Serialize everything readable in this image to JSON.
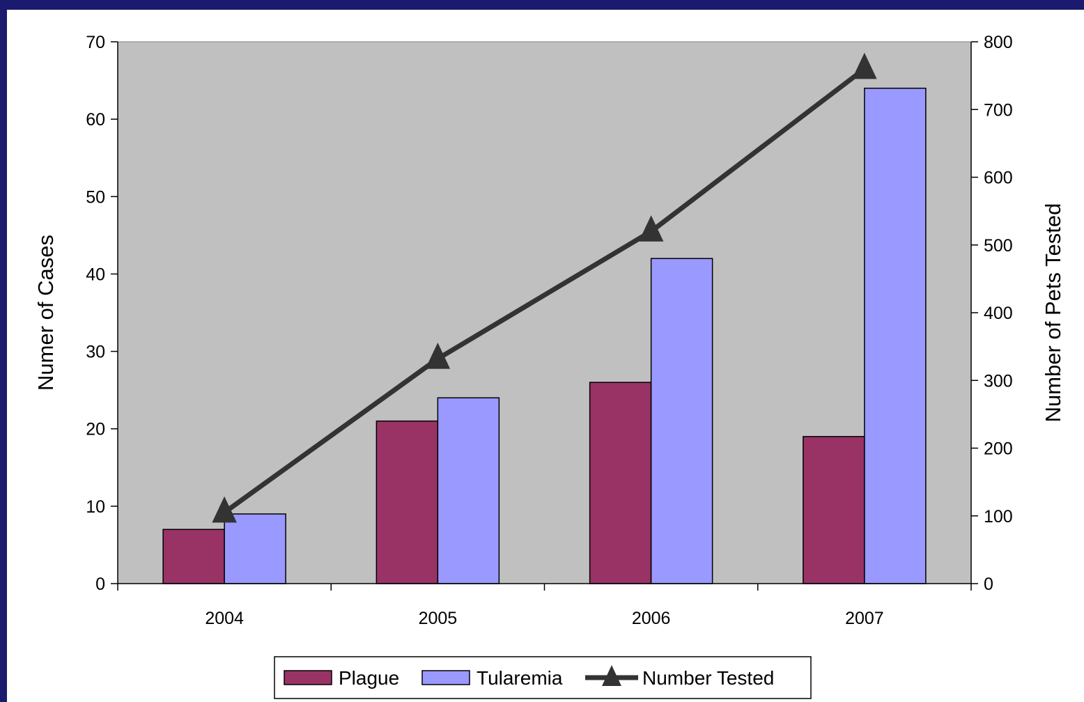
{
  "chart_data": {
    "type": "bar",
    "categories": [
      "2004",
      "2005",
      "2006",
      "2007"
    ],
    "series": [
      {
        "name": "Plague",
        "type": "bar",
        "axis": "left",
        "values": [
          7,
          21,
          26,
          19
        ],
        "color": "#993366"
      },
      {
        "name": "Tularemia",
        "type": "bar",
        "axis": "left",
        "values": [
          9,
          24,
          42,
          64
        ],
        "color": "#9999ff"
      },
      {
        "name": "Number Tested",
        "type": "line",
        "axis": "right",
        "marker": "triangle",
        "values": [
          105,
          332,
          520,
          760
        ],
        "color": "#333333"
      }
    ],
    "ylabel": "Numer of Cases",
    "y2label": "Number of Pets Tested",
    "xlabel": "",
    "ylim": [
      0,
      70
    ],
    "y2lim": [
      0,
      800
    ],
    "yticks": [
      "0",
      "10",
      "20",
      "30",
      "40",
      "50",
      "60",
      "70"
    ],
    "y2ticks": [
      "0",
      "100",
      "200",
      "300",
      "400",
      "500",
      "600",
      "700",
      "800"
    ],
    "plot_background": "#c0c0c0",
    "page_border_color": "#1a1a6e",
    "grid": false,
    "legend_position": "bottom"
  }
}
